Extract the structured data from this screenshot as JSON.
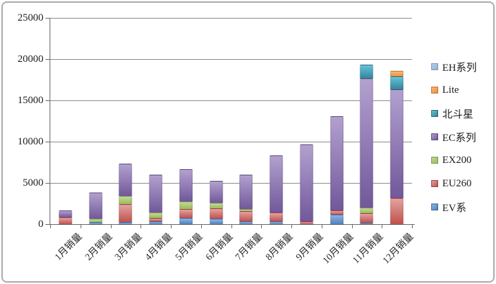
{
  "colors": {
    "background": "#ffffff",
    "gridline": "#8a8a8a",
    "axis": "#666666",
    "text": "#1a1a1a",
    "frame_border": "#aaaaaa"
  },
  "chart_data": {
    "type": "bar",
    "stacked": true,
    "title": "",
    "xlabel": "",
    "ylabel": "",
    "categories": [
      "1月销量",
      "2月销量",
      "3月销量",
      "4月销量",
      "5月销量",
      "6月销量",
      "7月销量",
      "8月销量",
      "9月销量",
      "10月销量",
      "11月销量",
      "12月销量"
    ],
    "series": [
      {
        "name": "EV系",
        "color": "#4f81bd",
        "color_light": "#8db4e3",
        "color_dark": "#3a6597",
        "values": [
          0,
          250,
          250,
          350,
          750,
          650,
          350,
          300,
          0,
          1150,
          200,
          0
        ]
      },
      {
        "name": "EU260",
        "color": "#c0504d",
        "color_light": "#e2a3a1",
        "color_dark": "#9e3b39",
        "values": [
          800,
          0,
          2200,
          400,
          1100,
          1250,
          1250,
          1100,
          300,
          480,
          1150,
          3200
        ]
      },
      {
        "name": "EX200",
        "color": "#9bbb59",
        "color_light": "#c3d69b",
        "color_dark": "#7a9646",
        "values": [
          0,
          450,
          1000,
          650,
          900,
          700,
          250,
          0,
          0,
          0,
          700,
          0
        ]
      },
      {
        "name": "EC系列",
        "color": "#71589a",
        "color_light": "#b2a1cf",
        "color_dark": "#5b4579",
        "values": [
          800,
          3200,
          3900,
          4550,
          3900,
          2700,
          4150,
          6900,
          9300,
          11400,
          15650,
          13200
        ]
      },
      {
        "name": "北斗星",
        "color": "#31859c",
        "color_light": "#68c2d8",
        "color_dark": "#26687a",
        "values": [
          0,
          0,
          0,
          0,
          0,
          0,
          0,
          0,
          0,
          0,
          1700,
          1550
        ]
      },
      {
        "name": "Lite",
        "color": "#e9913e",
        "color_light": "#fbb97a",
        "color_dark": "#c0702a",
        "values": [
          0,
          0,
          0,
          0,
          0,
          0,
          0,
          0,
          0,
          0,
          0,
          700
        ]
      },
      {
        "name": "EH系列",
        "color": "#95b3d7",
        "color_light": "#b8cce4",
        "color_dark": "#7494bd",
        "values": [
          0,
          0,
          0,
          0,
          0,
          0,
          0,
          0,
          0,
          0,
          0,
          0
        ]
      }
    ],
    "totals": [
      1600,
      3900,
      7350,
      5950,
      6650,
      5300,
      6000,
      8300,
      9600,
      13030,
      19400,
      18650
    ],
    "y_axis": {
      "min": 0,
      "max": 25000,
      "tick_step": 5000,
      "tick_labels": [
        "0",
        "5000",
        "10000",
        "15000",
        "20000",
        "25000"
      ]
    },
    "legend": {
      "position": "right",
      "items_top_to_bottom": [
        "EH系列",
        "Lite",
        "北斗星",
        "EC系列",
        "EX200",
        "EU260",
        "EV系"
      ]
    }
  }
}
